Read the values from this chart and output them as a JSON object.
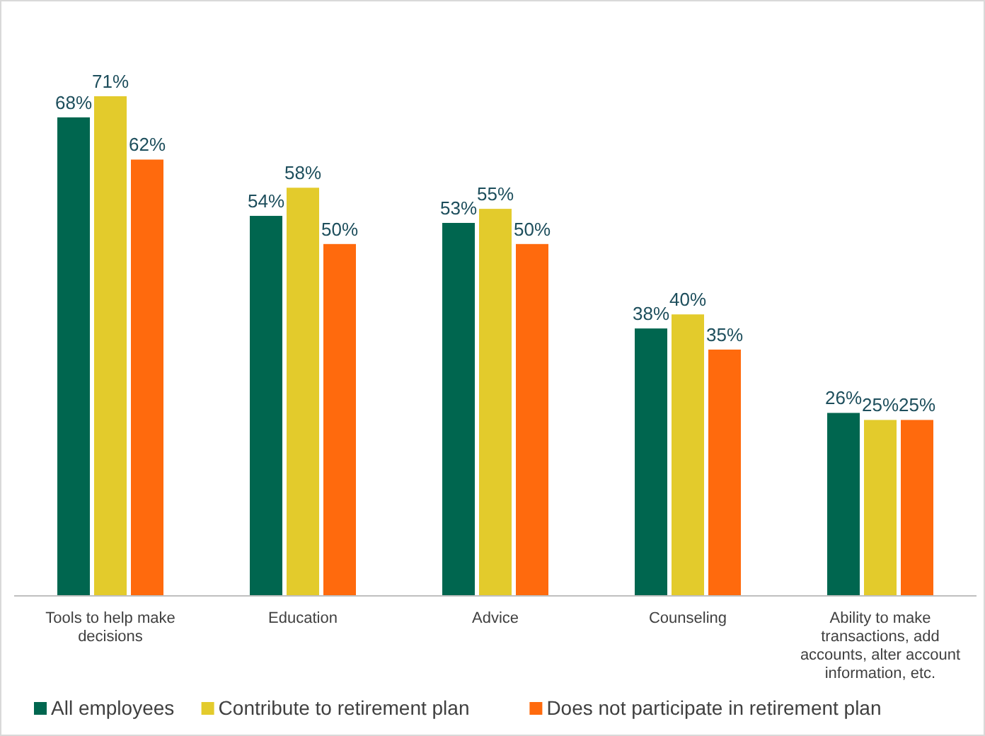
{
  "chart_data": {
    "type": "bar",
    "categories": [
      "Tools to help make decisions",
      "Education",
      "Advice",
      "Counseling",
      "Ability to make transactions, add accounts, alter account information, etc."
    ],
    "series": [
      {
        "name": "All employees",
        "color": "#00664f",
        "values": [
          68,
          54,
          53,
          38,
          26
        ],
        "value_labels": [
          "68%",
          "54%",
          "53%",
          "38%",
          "26%"
        ]
      },
      {
        "name": "Contribute to retirement plan",
        "color": "#e3cb2c",
        "values": [
          71,
          58,
          55,
          40,
          25
        ],
        "value_labels": [
          "71%",
          "58%",
          "55%",
          "40%",
          "25%"
        ]
      },
      {
        "name": "Does not participate in retirement plan",
        "color": "#ff6a0d",
        "values": [
          62,
          50,
          50,
          35,
          25
        ],
        "value_labels": [
          "62%",
          "50%",
          "50%",
          "35%",
          "25%"
        ]
      }
    ],
    "legend": "bottom"
  }
}
